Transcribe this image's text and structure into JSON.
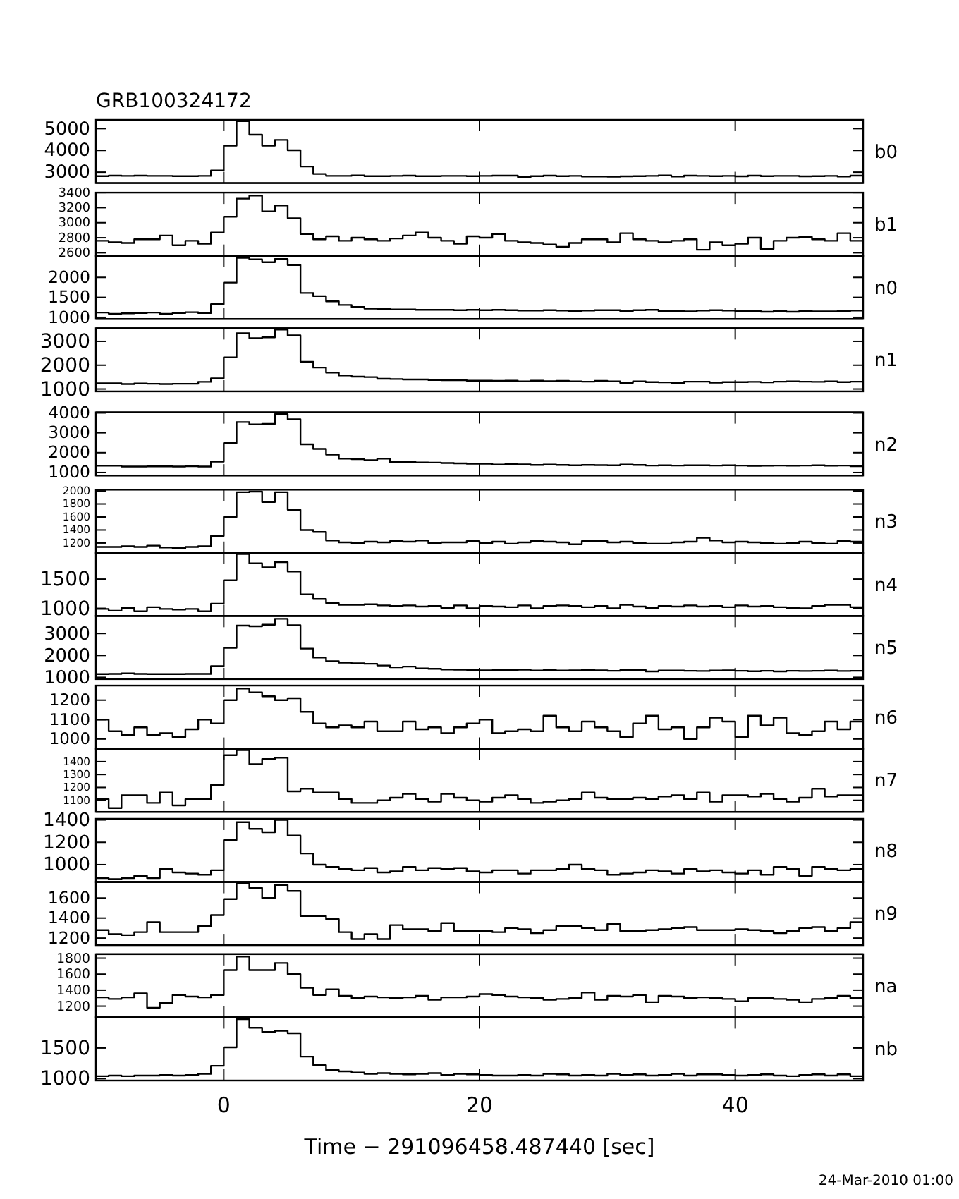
{
  "chart_data": [
    {
      "type": "histogram",
      "title": "GRB100324172",
      "bins": [
        -10,
        -9,
        -8,
        -7,
        -6,
        -5,
        -4,
        -3,
        -2,
        -1,
        0,
        1,
        2,
        3,
        4,
        5,
        6,
        7,
        8,
        9,
        10,
        11,
        12,
        13,
        14,
        15,
        16,
        17,
        18,
        19,
        20,
        21,
        22,
        23,
        24,
        25,
        26,
        27,
        28,
        29,
        30,
        31,
        32,
        33,
        34,
        35,
        36,
        37,
        38,
        39,
        40,
        41,
        42,
        43,
        44,
        45,
        46,
        47,
        48,
        49,
        50
      ],
      "xlim": [
        -10,
        50
      ],
      "xticks": [
        0,
        20,
        40
      ],
      "ylim": [
        2500,
        5400
      ],
      "yticks": [
        3000,
        4000,
        5000
      ],
      "tick_labels": "y",
      "series": [
        {
          "name": "b0",
          "color": "#000000",
          "values": [
            2820,
            2840,
            2830,
            2840,
            2830,
            2830,
            2820,
            2820,
            2830,
            3080,
            4220,
            5340,
            4720,
            4220,
            4480,
            4010,
            3260,
            2920,
            2830,
            2830,
            2850,
            2820,
            2820,
            2830,
            2840,
            2820,
            2820,
            2830,
            2830,
            2820,
            2830,
            2840,
            2840,
            2780,
            2820,
            2840,
            2820,
            2830,
            2800,
            2800,
            2790,
            2810,
            2820,
            2830,
            2850,
            2800,
            2840,
            2830,
            2820,
            2830,
            2810,
            2840,
            2820,
            2830,
            2830,
            2810,
            2820,
            2830,
            2800,
            2840
          ]
        }
      ]
    },
    {
      "type": "histogram",
      "bins": [
        -10,
        -9,
        -8,
        -7,
        -6,
        -5,
        -4,
        -3,
        -2,
        -1,
        0,
        1,
        2,
        3,
        4,
        5,
        6,
        7,
        8,
        9,
        10,
        11,
        12,
        13,
        14,
        15,
        16,
        17,
        18,
        19,
        20,
        21,
        22,
        23,
        24,
        25,
        26,
        27,
        28,
        29,
        30,
        31,
        32,
        33,
        34,
        35,
        36,
        37,
        38,
        39,
        40,
        41,
        42,
        43,
        44,
        45,
        46,
        47,
        48,
        49,
        50
      ],
      "xlim": [
        -10,
        50
      ],
      "xticks": [
        0,
        20,
        40
      ],
      "ylim": [
        2560,
        3400
      ],
      "yticks": [
        2600,
        2800,
        3000,
        3200,
        3400
      ],
      "tick_labels": "y",
      "series": [
        {
          "name": "b1",
          "color": "#000000",
          "values": [
            2760,
            2740,
            2730,
            2780,
            2780,
            2830,
            2700,
            2760,
            2720,
            2870,
            3080,
            3320,
            3360,
            3150,
            3230,
            3060,
            2850,
            2780,
            2820,
            2760,
            2800,
            2780,
            2760,
            2790,
            2830,
            2870,
            2800,
            2760,
            2720,
            2820,
            2800,
            2850,
            2760,
            2740,
            2730,
            2710,
            2680,
            2730,
            2780,
            2780,
            2740,
            2860,
            2780,
            2760,
            2740,
            2760,
            2780,
            2640,
            2740,
            2700,
            2720,
            2800,
            2650,
            2760,
            2800,
            2810,
            2780,
            2760,
            2860,
            2760
          ]
        }
      ]
    },
    {
      "type": "histogram",
      "bins": [
        -10,
        -9,
        -8,
        -7,
        -6,
        -5,
        -4,
        -3,
        -2,
        -1,
        0,
        1,
        2,
        3,
        4,
        5,
        6,
        7,
        8,
        9,
        10,
        11,
        12,
        13,
        14,
        15,
        16,
        17,
        18,
        19,
        20,
        21,
        22,
        23,
        24,
        25,
        26,
        27,
        28,
        29,
        30,
        31,
        32,
        33,
        34,
        35,
        36,
        37,
        38,
        39,
        40,
        41,
        42,
        43,
        44,
        45,
        46,
        47,
        48,
        49,
        50
      ],
      "xlim": [
        -10,
        50
      ],
      "xticks": [
        0,
        20,
        40
      ],
      "ylim": [
        960,
        2540
      ],
      "yticks": [
        1000,
        1500,
        2000
      ],
      "tick_labels": "y",
      "series": [
        {
          "name": "n0",
          "color": "#000000",
          "values": [
            1120,
            1090,
            1100,
            1110,
            1120,
            1090,
            1110,
            1130,
            1110,
            1330,
            1870,
            2490,
            2450,
            2380,
            2460,
            2310,
            1610,
            1530,
            1400,
            1310,
            1260,
            1220,
            1210,
            1200,
            1200,
            1190,
            1190,
            1190,
            1180,
            1190,
            1180,
            1190,
            1180,
            1170,
            1170,
            1180,
            1170,
            1160,
            1170,
            1180,
            1180,
            1160,
            1180,
            1190,
            1160,
            1160,
            1150,
            1170,
            1180,
            1170,
            1160,
            1160,
            1140,
            1160,
            1140,
            1160,
            1150,
            1150,
            1160,
            1170
          ]
        }
      ]
    },
    {
      "type": "histogram",
      "bins": [
        -10,
        -9,
        -8,
        -7,
        -6,
        -5,
        -4,
        -3,
        -2,
        -1,
        0,
        1,
        2,
        3,
        4,
        5,
        6,
        7,
        8,
        9,
        10,
        11,
        12,
        13,
        14,
        15,
        16,
        17,
        18,
        19,
        20,
        21,
        22,
        23,
        24,
        25,
        26,
        27,
        28,
        29,
        30,
        31,
        32,
        33,
        34,
        35,
        36,
        37,
        38,
        39,
        40,
        41,
        42,
        43,
        44,
        45,
        46,
        47,
        48,
        49,
        50
      ],
      "xlim": [
        -10,
        50
      ],
      "xticks": [
        0,
        20,
        40
      ],
      "ylim": [
        900,
        3550
      ],
      "yticks": [
        1000,
        2000,
        3000
      ],
      "tick_labels": "y",
      "series": [
        {
          "name": "n1",
          "color": "#000000",
          "values": [
            1240,
            1240,
            1210,
            1230,
            1220,
            1210,
            1220,
            1220,
            1300,
            1450,
            2330,
            3340,
            3130,
            3170,
            3490,
            3250,
            2140,
            1900,
            1690,
            1570,
            1520,
            1500,
            1430,
            1420,
            1400,
            1400,
            1380,
            1370,
            1370,
            1350,
            1350,
            1340,
            1350,
            1320,
            1350,
            1330,
            1340,
            1320,
            1310,
            1340,
            1320,
            1260,
            1320,
            1290,
            1280,
            1250,
            1310,
            1310,
            1270,
            1290,
            1290,
            1300,
            1280,
            1310,
            1320,
            1310,
            1300,
            1320,
            1290,
            1310
          ]
        }
      ]
    },
    {
      "type": "histogram",
      "bins": [
        -10,
        -9,
        -8,
        -7,
        -6,
        -5,
        -4,
        -3,
        -2,
        -1,
        0,
        1,
        2,
        3,
        4,
        5,
        6,
        7,
        8,
        9,
        10,
        11,
        12,
        13,
        14,
        15,
        16,
        17,
        18,
        19,
        20,
        21,
        22,
        23,
        24,
        25,
        26,
        27,
        28,
        29,
        30,
        31,
        32,
        33,
        34,
        35,
        36,
        37,
        38,
        39,
        40,
        41,
        42,
        43,
        44,
        45,
        46,
        47,
        48,
        49,
        50
      ],
      "xlim": [
        -10,
        50
      ],
      "xticks": [
        0,
        20,
        40
      ],
      "ylim": [
        850,
        4030
      ],
      "yticks": [
        1000,
        2000,
        3000,
        4000
      ],
      "tick_labels": "y",
      "series": [
        {
          "name": "n2",
          "color": "#000000",
          "values": [
            1340,
            1340,
            1300,
            1300,
            1310,
            1310,
            1300,
            1320,
            1300,
            1550,
            2480,
            3540,
            3420,
            3450,
            3940,
            3680,
            2420,
            2190,
            1900,
            1700,
            1670,
            1620,
            1700,
            1520,
            1530,
            1510,
            1500,
            1480,
            1460,
            1440,
            1440,
            1400,
            1420,
            1410,
            1380,
            1400,
            1380,
            1360,
            1380,
            1370,
            1360,
            1400,
            1380,
            1350,
            1360,
            1350,
            1360,
            1360,
            1350,
            1360,
            1350,
            1330,
            1340,
            1350,
            1340,
            1350,
            1360,
            1340,
            1350,
            1320
          ]
        }
      ]
    },
    {
      "type": "histogram",
      "bins": [
        -10,
        -9,
        -8,
        -7,
        -6,
        -5,
        -4,
        -3,
        -2,
        -1,
        0,
        1,
        2,
        3,
        4,
        5,
        6,
        7,
        8,
        9,
        10,
        11,
        12,
        13,
        14,
        15,
        16,
        17,
        18,
        19,
        20,
        21,
        22,
        23,
        24,
        25,
        26,
        27,
        28,
        29,
        30,
        31,
        32,
        33,
        34,
        35,
        36,
        37,
        38,
        39,
        40,
        41,
        42,
        43,
        44,
        45,
        46,
        47,
        48,
        49,
        50
      ],
      "xlim": [
        -10,
        50
      ],
      "xticks": [
        0,
        20,
        40
      ],
      "ylim": [
        1050,
        2020
      ],
      "yticks": [
        1200,
        1400,
        1600,
        1800,
        2000
      ],
      "tick_labels": "y",
      "series": [
        {
          "name": "n3",
          "color": "#000000",
          "values": [
            1140,
            1140,
            1150,
            1140,
            1160,
            1130,
            1120,
            1140,
            1150,
            1310,
            1600,
            1980,
            1990,
            1830,
            1980,
            1710,
            1400,
            1370,
            1240,
            1210,
            1200,
            1220,
            1210,
            1230,
            1220,
            1240,
            1200,
            1210,
            1210,
            1230,
            1200,
            1220,
            1190,
            1210,
            1230,
            1220,
            1210,
            1180,
            1230,
            1230,
            1210,
            1220,
            1200,
            1190,
            1190,
            1210,
            1220,
            1280,
            1240,
            1210,
            1220,
            1210,
            1200,
            1190,
            1200,
            1220,
            1200,
            1190,
            1230,
            1220
          ]
        }
      ]
    },
    {
      "type": "histogram",
      "bins": [
        -10,
        -9,
        -8,
        -7,
        -6,
        -5,
        -4,
        -3,
        -2,
        -1,
        0,
        1,
        2,
        3,
        4,
        5,
        6,
        7,
        8,
        9,
        10,
        11,
        12,
        13,
        14,
        15,
        16,
        17,
        18,
        19,
        20,
        21,
        22,
        23,
        24,
        25,
        26,
        27,
        28,
        29,
        30,
        31,
        32,
        33,
        34,
        35,
        36,
        37,
        38,
        39,
        40,
        41,
        42,
        43,
        44,
        45,
        46,
        47,
        48,
        49,
        50
      ],
      "xlim": [
        -10,
        50
      ],
      "xticks": [
        0,
        20,
        40
      ],
      "ylim": [
        870,
        1950
      ],
      "yticks": [
        1000,
        1500
      ],
      "tick_labels": "y",
      "series": [
        {
          "name": "n4",
          "color": "#000000",
          "values": [
            990,
            960,
            1010,
            950,
            1020,
            990,
            980,
            990,
            950,
            1080,
            1480,
            1930,
            1770,
            1700,
            1790,
            1630,
            1240,
            1160,
            1090,
            1060,
            1060,
            1070,
            1050,
            1040,
            1050,
            1030,
            1040,
            1010,
            1050,
            1000,
            1040,
            1030,
            1020,
            1050,
            1000,
            1040,
            1050,
            1040,
            1020,
            1040,
            1000,
            1060,
            1030,
            1010,
            1040,
            1030,
            1050,
            1030,
            1040,
            1020,
            1050,
            1030,
            1040,
            1020,
            1010,
            1000,
            1040,
            1060,
            1060,
            1020
          ]
        }
      ]
    },
    {
      "type": "histogram",
      "bins": [
        -10,
        -9,
        -8,
        -7,
        -6,
        -5,
        -4,
        -3,
        -2,
        -1,
        0,
        1,
        2,
        3,
        4,
        5,
        6,
        7,
        8,
        9,
        10,
        11,
        12,
        13,
        14,
        15,
        16,
        17,
        18,
        19,
        20,
        21,
        22,
        23,
        24,
        25,
        26,
        27,
        28,
        29,
        30,
        31,
        32,
        33,
        34,
        35,
        36,
        37,
        38,
        39,
        40,
        41,
        42,
        43,
        44,
        45,
        46,
        47,
        48,
        49,
        50
      ],
      "xlim": [
        -10,
        50
      ],
      "xticks": [
        0,
        20,
        40
      ],
      "ylim": [
        920,
        3800
      ],
      "yticks": [
        1000,
        2000,
        3000
      ],
      "tick_labels": "y",
      "series": [
        {
          "name": "n5",
          "color": "#000000",
          "values": [
            1150,
            1160,
            1180,
            1160,
            1150,
            1150,
            1150,
            1160,
            1160,
            1510,
            2350,
            3360,
            3330,
            3400,
            3670,
            3380,
            2310,
            1900,
            1740,
            1670,
            1640,
            1620,
            1540,
            1460,
            1490,
            1410,
            1390,
            1360,
            1350,
            1340,
            1320,
            1330,
            1330,
            1350,
            1310,
            1330,
            1310,
            1320,
            1340,
            1320,
            1300,
            1330,
            1340,
            1270,
            1310,
            1310,
            1300,
            1290,
            1310,
            1320,
            1300,
            1280,
            1300,
            1270,
            1300,
            1290,
            1300,
            1310,
            1290,
            1300
          ]
        }
      ]
    },
    {
      "type": "histogram",
      "bins": [
        -10,
        -9,
        -8,
        -7,
        -6,
        -5,
        -4,
        -3,
        -2,
        -1,
        0,
        1,
        2,
        3,
        4,
        5,
        6,
        7,
        8,
        9,
        10,
        11,
        12,
        13,
        14,
        15,
        16,
        17,
        18,
        19,
        20,
        21,
        22,
        23,
        24,
        25,
        26,
        27,
        28,
        29,
        30,
        31,
        32,
        33,
        34,
        35,
        36,
        37,
        38,
        39,
        40,
        41,
        42,
        43,
        44,
        45,
        46,
        47,
        48,
        49,
        50
      ],
      "xlim": [
        -10,
        50
      ],
      "xticks": [
        0,
        20,
        40
      ],
      "ylim": [
        950,
        1275
      ],
      "yticks": [
        1000,
        1100,
        1200
      ],
      "tick_labels": "y",
      "series": [
        {
          "name": "n6",
          "color": "#000000",
          "values": [
            1100,
            1040,
            1020,
            1060,
            1020,
            1030,
            1010,
            1050,
            1100,
            1080,
            1200,
            1260,
            1240,
            1220,
            1200,
            1210,
            1140,
            1080,
            1060,
            1070,
            1060,
            1090,
            1040,
            1040,
            1090,
            1050,
            1060,
            1030,
            1060,
            1080,
            1100,
            1030,
            1040,
            1050,
            1040,
            1120,
            1060,
            1040,
            1090,
            1060,
            1040,
            1010,
            1080,
            1120,
            1050,
            1060,
            1000,
            1060,
            1110,
            1090,
            1010,
            1120,
            1070,
            1110,
            1030,
            1020,
            1040,
            1090,
            1050,
            1090
          ]
        }
      ]
    },
    {
      "type": "histogram",
      "bins": [
        -10,
        -9,
        -8,
        -7,
        -6,
        -5,
        -4,
        -3,
        -2,
        -1,
        0,
        1,
        2,
        3,
        4,
        5,
        6,
        7,
        8,
        9,
        10,
        11,
        12,
        13,
        14,
        15,
        16,
        17,
        18,
        19,
        20,
        21,
        22,
        23,
        24,
        25,
        26,
        27,
        28,
        29,
        30,
        31,
        32,
        33,
        34,
        35,
        36,
        37,
        38,
        39,
        40,
        41,
        42,
        43,
        44,
        45,
        46,
        47,
        48,
        49,
        50
      ],
      "xlim": [
        -10,
        50
      ],
      "xticks": [
        0,
        20,
        40
      ],
      "ylim": [
        1010,
        1500
      ],
      "yticks": [
        1100,
        1200,
        1300,
        1400
      ],
      "tick_labels": "y",
      "series": [
        {
          "name": "n7",
          "color": "#000000",
          "values": [
            1110,
            1040,
            1140,
            1140,
            1080,
            1160,
            1060,
            1110,
            1110,
            1220,
            1450,
            1490,
            1380,
            1420,
            1430,
            1170,
            1190,
            1160,
            1160,
            1110,
            1080,
            1080,
            1100,
            1120,
            1150,
            1110,
            1090,
            1150,
            1120,
            1100,
            1090,
            1120,
            1140,
            1110,
            1080,
            1090,
            1100,
            1110,
            1160,
            1120,
            1110,
            1110,
            1120,
            1110,
            1130,
            1140,
            1110,
            1160,
            1090,
            1140,
            1140,
            1130,
            1150,
            1110,
            1090,
            1120,
            1190,
            1130,
            1140,
            1140
          ]
        }
      ]
    },
    {
      "type": "histogram",
      "bins": [
        -10,
        -9,
        -8,
        -7,
        -6,
        -5,
        -4,
        -3,
        -2,
        -1,
        0,
        1,
        2,
        3,
        4,
        5,
        6,
        7,
        8,
        9,
        10,
        11,
        12,
        13,
        14,
        15,
        16,
        17,
        18,
        19,
        20,
        21,
        22,
        23,
        24,
        25,
        26,
        27,
        28,
        29,
        30,
        31,
        32,
        33,
        34,
        35,
        36,
        37,
        38,
        39,
        40,
        41,
        42,
        43,
        44,
        45,
        46,
        47,
        48,
        49,
        50
      ],
      "xlim": [
        -10,
        50
      ],
      "xticks": [
        0,
        20,
        40
      ],
      "ylim": [
        845,
        1410
      ],
      "yticks": [
        1000,
        1200,
        1400
      ],
      "tick_labels": "y",
      "series": [
        {
          "name": "n8",
          "color": "#000000",
          "values": [
            880,
            870,
            880,
            900,
            880,
            960,
            930,
            920,
            910,
            950,
            1220,
            1380,
            1320,
            1290,
            1400,
            1260,
            1100,
            1000,
            980,
            960,
            950,
            970,
            930,
            940,
            980,
            950,
            970,
            960,
            970,
            940,
            930,
            950,
            950,
            920,
            950,
            950,
            960,
            1000,
            960,
            950,
            910,
            920,
            930,
            950,
            940,
            920,
            960,
            940,
            950,
            930,
            920,
            950,
            910,
            980,
            960,
            900,
            980,
            960,
            950,
            960
          ]
        }
      ]
    },
    {
      "type": "histogram",
      "bins": [
        -10,
        -9,
        -8,
        -7,
        -6,
        -5,
        -4,
        -3,
        -2,
        -1,
        0,
        1,
        2,
        3,
        4,
        5,
        6,
        7,
        8,
        9,
        10,
        11,
        12,
        13,
        14,
        15,
        16,
        17,
        18,
        19,
        20,
        21,
        22,
        23,
        24,
        25,
        26,
        27,
        28,
        29,
        30,
        31,
        32,
        33,
        34,
        35,
        36,
        37,
        38,
        39,
        40,
        41,
        42,
        43,
        44,
        45,
        46,
        47,
        48,
        49,
        50
      ],
      "xlim": [
        -10,
        50
      ],
      "xticks": [
        0,
        20,
        40
      ],
      "ylim": [
        1130,
        1760
      ],
      "yticks": [
        1200,
        1400,
        1600
      ],
      "tick_labels": "y",
      "series": [
        {
          "name": "n9",
          "color": "#000000",
          "values": [
            1280,
            1240,
            1230,
            1260,
            1360,
            1260,
            1260,
            1260,
            1320,
            1430,
            1590,
            1750,
            1700,
            1600,
            1730,
            1670,
            1420,
            1420,
            1390,
            1260,
            1190,
            1240,
            1190,
            1330,
            1290,
            1290,
            1270,
            1350,
            1270,
            1270,
            1270,
            1260,
            1300,
            1290,
            1250,
            1280,
            1320,
            1320,
            1300,
            1280,
            1340,
            1270,
            1270,
            1280,
            1290,
            1300,
            1310,
            1280,
            1280,
            1280,
            1290,
            1280,
            1270,
            1250,
            1270,
            1300,
            1310,
            1270,
            1300,
            1360
          ]
        }
      ]
    },
    {
      "type": "histogram",
      "bins": [
        -10,
        -9,
        -8,
        -7,
        -6,
        -5,
        -4,
        -3,
        -2,
        -1,
        0,
        1,
        2,
        3,
        4,
        5,
        6,
        7,
        8,
        9,
        10,
        11,
        12,
        13,
        14,
        15,
        16,
        17,
        18,
        19,
        20,
        21,
        22,
        23,
        24,
        25,
        26,
        27,
        28,
        29,
        30,
        31,
        32,
        33,
        34,
        35,
        36,
        37,
        38,
        39,
        40,
        41,
        42,
        43,
        44,
        45,
        46,
        47,
        48,
        49,
        50
      ],
      "xlim": [
        -10,
        50
      ],
      "xticks": [
        0,
        20,
        40
      ],
      "ylim": [
        1060,
        1850
      ],
      "yticks": [
        1200,
        1400,
        1600,
        1800
      ],
      "tick_labels": "y",
      "series": [
        {
          "name": "na",
          "color": "#000000",
          "values": [
            1310,
            1290,
            1310,
            1360,
            1180,
            1240,
            1340,
            1320,
            1310,
            1340,
            1650,
            1820,
            1650,
            1650,
            1740,
            1600,
            1430,
            1340,
            1410,
            1330,
            1300,
            1320,
            1310,
            1300,
            1310,
            1330,
            1280,
            1310,
            1310,
            1320,
            1350,
            1340,
            1320,
            1310,
            1300,
            1280,
            1290,
            1300,
            1370,
            1280,
            1330,
            1320,
            1340,
            1250,
            1330,
            1320,
            1300,
            1310,
            1300,
            1290,
            1260,
            1300,
            1300,
            1290,
            1280,
            1250,
            1290,
            1300,
            1330,
            1300
          ]
        }
      ]
    },
    {
      "type": "histogram",
      "bins": [
        -10,
        -9,
        -8,
        -7,
        -6,
        -5,
        -4,
        -3,
        -2,
        -1,
        0,
        1,
        2,
        3,
        4,
        5,
        6,
        7,
        8,
        9,
        10,
        11,
        12,
        13,
        14,
        15,
        16,
        17,
        18,
        19,
        20,
        21,
        22,
        23,
        24,
        25,
        26,
        27,
        28,
        29,
        30,
        31,
        32,
        33,
        34,
        35,
        36,
        37,
        38,
        39,
        40,
        41,
        42,
        43,
        44,
        45,
        46,
        47,
        48,
        49,
        50
      ],
      "xlim": [
        -10,
        50
      ],
      "xticks": [
        0,
        20,
        40
      ],
      "ylim": [
        970,
        2000
      ],
      "yticks": [
        1000,
        1500
      ],
      "xlabel": "Time − 291096458.487440 [sec]",
      "annotations": [
        "24-Mar-2010 01:00"
      ],
      "series": [
        {
          "name": "nb",
          "color": "#000000",
          "values": [
            1040,
            1050,
            1040,
            1050,
            1050,
            1060,
            1050,
            1060,
            1080,
            1210,
            1510,
            1970,
            1830,
            1760,
            1780,
            1740,
            1360,
            1220,
            1140,
            1120,
            1100,
            1080,
            1090,
            1080,
            1070,
            1080,
            1090,
            1060,
            1080,
            1070,
            1060,
            1050,
            1050,
            1060,
            1050,
            1080,
            1070,
            1050,
            1060,
            1050,
            1080,
            1060,
            1070,
            1050,
            1060,
            1080,
            1050,
            1070,
            1070,
            1060,
            1050,
            1060,
            1070,
            1050,
            1040,
            1060,
            1070,
            1050,
            1070,
            1040
          ]
        }
      ]
    }
  ]
}
